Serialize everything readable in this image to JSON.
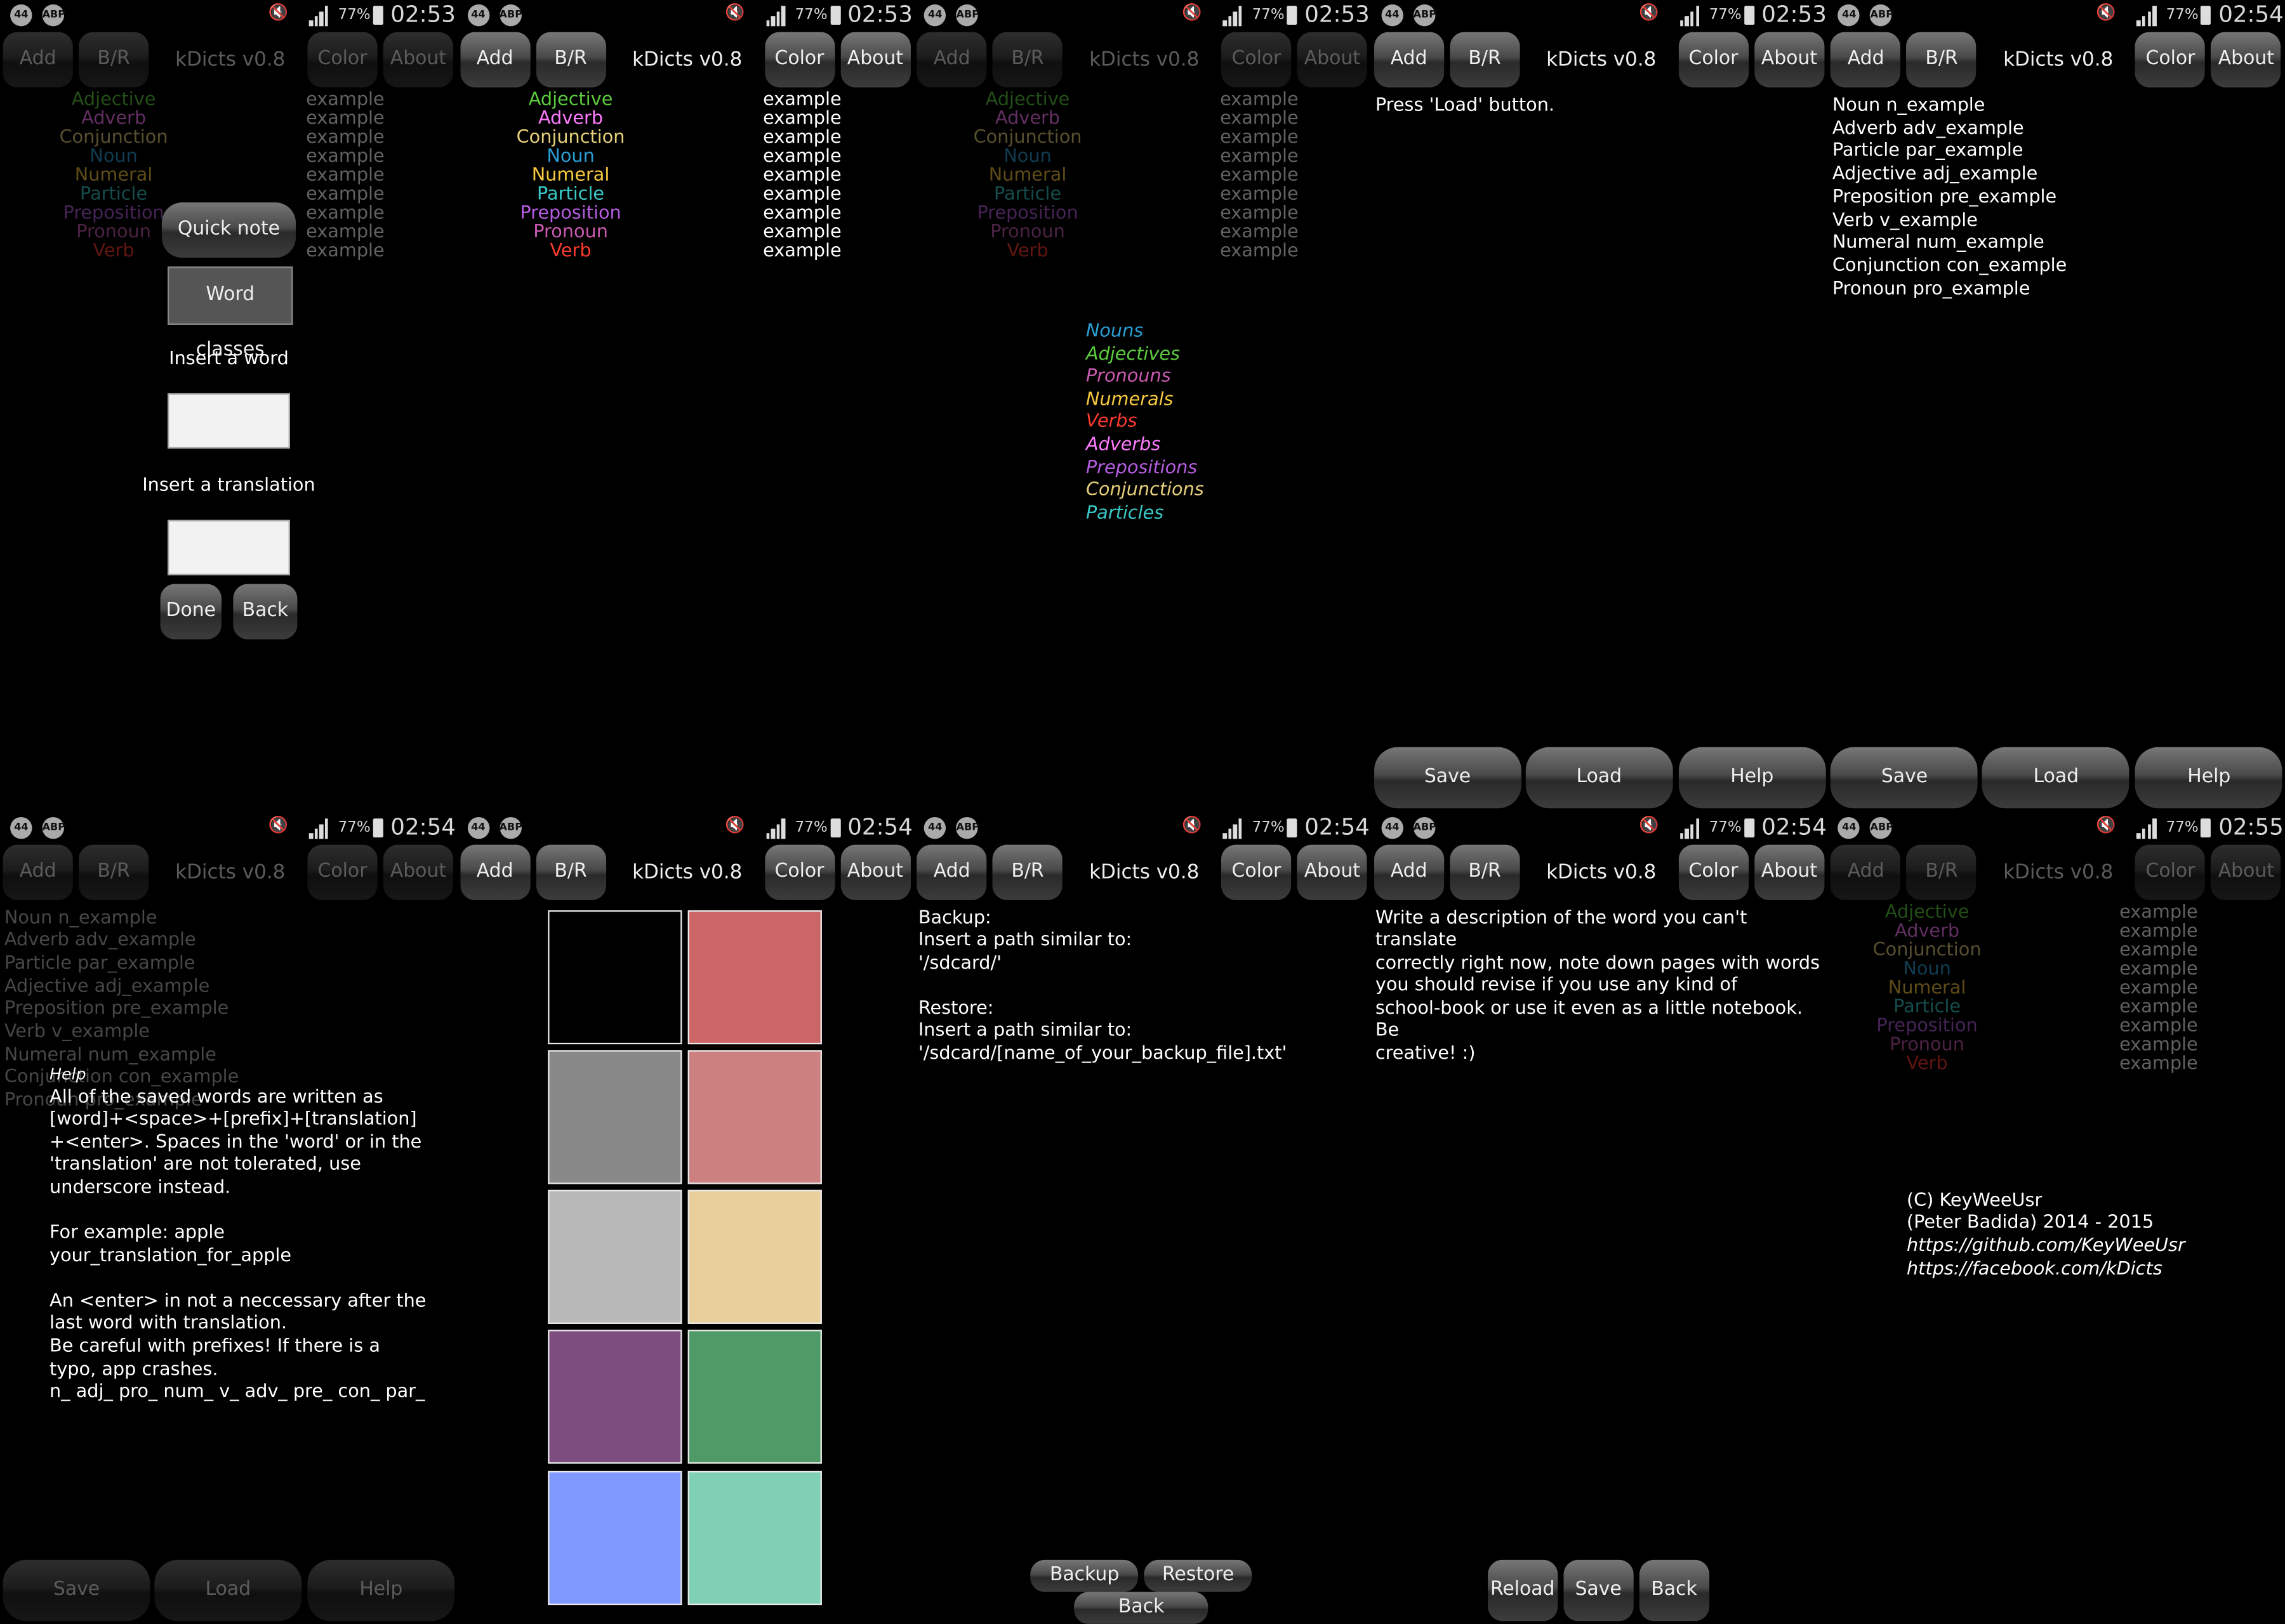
{
  "status_bar": {
    "battery_pct": "77%",
    "badge_44": "44",
    "badge_abp": "ABP",
    "times": [
      "02:53",
      "02:53",
      "02:53",
      "02:53",
      "02:54",
      "02:54",
      "02:54",
      "02:54",
      "02:54",
      "02:55"
    ]
  },
  "action_bar": {
    "add": "Add",
    "br": "B/R",
    "title": "kDicts v0.8",
    "color": "Color",
    "about": "About"
  },
  "word_classes": [
    {
      "name": "Adjective",
      "color": "#5ccc3e"
    },
    {
      "name": "Adverb",
      "color": "#ff7cff"
    },
    {
      "name": "Conjunction",
      "color": "#e7cf7b"
    },
    {
      "name": "Noun",
      "color": "#2a9fd6"
    },
    {
      "name": "Numeral",
      "color": "#f7c840"
    },
    {
      "name": "Particle",
      "color": "#39c9c9"
    },
    {
      "name": "Preposition",
      "color": "#b55ce0"
    },
    {
      "name": "Pronoun",
      "color": "#c85ab0"
    },
    {
      "name": "Verb",
      "color": "#ff3b30"
    }
  ],
  "example_word": "example",
  "add_dialog": {
    "quick_note": "Quick note",
    "word_classes": "Word classes",
    "insert_word": "Insert a word",
    "insert_translation": "Insert a translation",
    "done": "Done",
    "back": "Back"
  },
  "legend": [
    {
      "name": "Nouns",
      "color": "#2a9fd6"
    },
    {
      "name": "Adjectives",
      "color": "#5ccc3e"
    },
    {
      "name": "Pronouns",
      "color": "#c85ab0"
    },
    {
      "name": "Numerals",
      "color": "#f7c840"
    },
    {
      "name": "Verbs",
      "color": "#ff3b30"
    },
    {
      "name": "Adverbs",
      "color": "#ff7cff"
    },
    {
      "name": "Prepositions",
      "color": "#b55ce0"
    },
    {
      "name": "Conjunctions",
      "color": "#e7cf7b"
    },
    {
      "name": "Particles",
      "color": "#39c9c9"
    }
  ],
  "br_screen": {
    "press_load": "Press 'Load' button.",
    "save": "Save",
    "load": "Load",
    "help": "Help"
  },
  "loaded_words": [
    "Noun n_example",
    "Adverb adv_example",
    "Particle par_example",
    "Adjective adj_example",
    "Preposition pre_example",
    "Verb v_example",
    "Numeral num_example",
    "Conjunction con_example",
    "Pronoun pro_example"
  ],
  "help_dialog": {
    "title": "Help",
    "body": "All of the saved words are written as\n[word]+<space>+[prefix]+[translation]\n+<enter>. Spaces in the 'word' or in the\n'translation' are not tolerated, use\nunderscore instead.\n\nFor example: apple\nyour_translation_for_apple\n\nAn <enter> in not a neccessary after the\nlast word with translation.\nBe careful with prefixes! If there is a\ntypo, app crashes.\nn_ adj_ pro_ num_ v_ adv_ pre_ con_ par_"
  },
  "color_swatches": [
    "#000000",
    "#cc6666",
    "#888888",
    "#cc8080",
    "#b8b8b8",
    "#e8cf9c",
    "#7d4d80",
    "#4f9a67",
    "#8099ff",
    "#80d0b5"
  ],
  "backup_screen": {
    "text": "Backup:\nInsert a path similar to:\n'/sdcard/'\n\nRestore:\nInsert a path similar to:\n'/sdcard/[name_of_your_backup_file].txt'",
    "backup": "Backup",
    "restore": "Restore",
    "back": "Back"
  },
  "quick_note_screen": {
    "text": "Write a description of the word you can't translate\ncorrectly right now, note down pages with words\nyou should revise if you use any kind of\nschool-book or use it even as a little notebook. Be\ncreative! :)",
    "reload": "Reload",
    "save": "Save",
    "back": "Back"
  },
  "about_screen": {
    "copyright": "(C) KeyWeeUsr",
    "author": "(Peter Badida) 2014 - 2015",
    "github": "https://github.com/KeyWeeUsr",
    "facebook": "https://facebook.com/kDicts"
  }
}
